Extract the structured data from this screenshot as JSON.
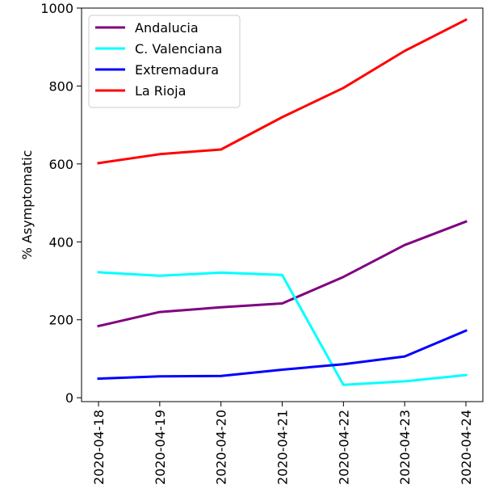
{
  "chart_data": {
    "type": "line",
    "title": "",
    "xlabel": "",
    "ylabel": "% Asymptomatic",
    "categories": [
      "2020-04-18",
      "2020-04-19",
      "2020-04-20",
      "2020-04-21",
      "2020-04-22",
      "2020-04-23",
      "2020-04-24"
    ],
    "ylim": [
      -10,
      1000
    ],
    "yticks": [
      0,
      200,
      400,
      600,
      800,
      1000
    ],
    "grid": false,
    "legend_position": "top-left",
    "series": [
      {
        "name": "Andalucia",
        "color": "#800080",
        "values": [
          184,
          220,
          232,
          242,
          310,
          392,
          452
        ]
      },
      {
        "name": "C. Valenciana",
        "color": "#00ffff",
        "values": [
          322,
          313,
          321,
          315,
          33,
          42,
          58
        ]
      },
      {
        "name": "Extremadura",
        "color": "#0000ff",
        "values": [
          49,
          55,
          56,
          72,
          86,
          106,
          172
        ]
      },
      {
        "name": "La Rioja",
        "color": "#ff0000",
        "values": [
          602,
          625,
          637,
          720,
          795,
          890,
          970
        ]
      }
    ]
  }
}
